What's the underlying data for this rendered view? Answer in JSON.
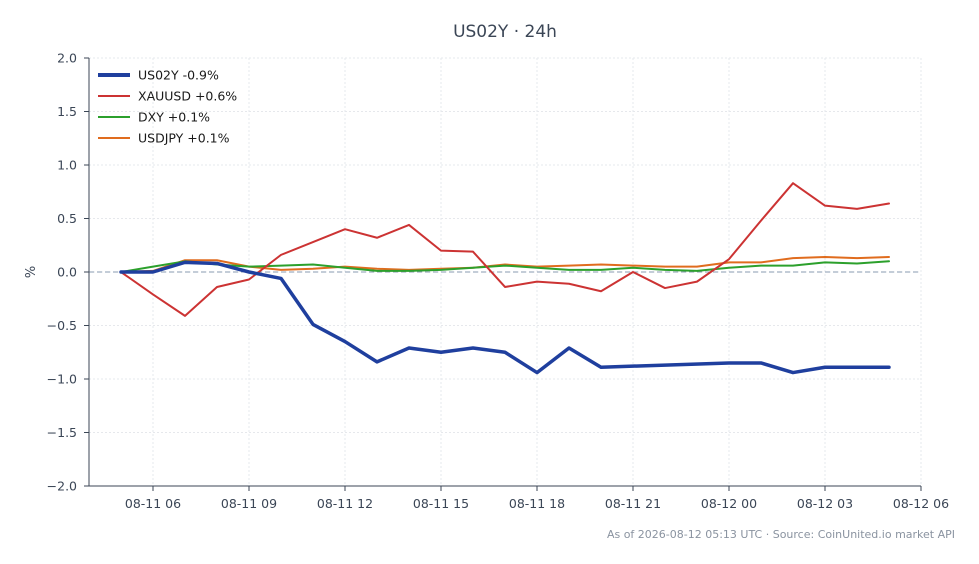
{
  "chart_data": {
    "type": "line",
    "title": "US02Y · 24h",
    "ylabel": "%",
    "xlabel": "",
    "ylim": [
      -2.0,
      2.0
    ],
    "yticks": [
      2.0,
      1.5,
      1.0,
      0.5,
      0.0,
      -0.5,
      -1.0,
      -1.5,
      -2.0
    ],
    "ytick_labels": [
      "2.0",
      "1.5",
      "1.0",
      "0.5",
      "0.0",
      "−0.5",
      "−1.0",
      "−1.5",
      "−2.0"
    ],
    "xlim": [
      "2026-08-11 04:00",
      "2026-08-12 06:00"
    ],
    "xticks": [
      "2026-08-11 06:00",
      "2026-08-11 09:00",
      "2026-08-11 12:00",
      "2026-08-11 15:00",
      "2026-08-11 18:00",
      "2026-08-11 21:00",
      "2026-08-12 00:00",
      "2026-08-12 03:00",
      "2026-08-12 06:00"
    ],
    "xtick_labels": [
      "08-11 06",
      "08-11 09",
      "08-11 12",
      "08-11 15",
      "08-11 18",
      "08-11 21",
      "08-12 00",
      "08-12 03",
      "08-12 06"
    ],
    "grid": true,
    "zero_line": true,
    "legend_position": "top-left",
    "series": [
      {
        "name": "US02Y -0.9%",
        "color": "#1f3f9e",
        "line_width": "thick",
        "points": [
          [
            "2026-08-11 05:00",
            0.0
          ],
          [
            "2026-08-11 06:00",
            0.0
          ],
          [
            "2026-08-11 07:00",
            0.09
          ],
          [
            "2026-08-11 08:00",
            0.08
          ],
          [
            "2026-08-11 09:00",
            0.0
          ],
          [
            "2026-08-11 10:00",
            -0.06
          ],
          [
            "2026-08-11 11:00",
            -0.49
          ],
          [
            "2026-08-11 12:00",
            -0.65
          ],
          [
            "2026-08-11 13:00",
            -0.84
          ],
          [
            "2026-08-11 14:00",
            -0.71
          ],
          [
            "2026-08-11 15:00",
            -0.75
          ],
          [
            "2026-08-11 16:00",
            -0.71
          ],
          [
            "2026-08-11 17:00",
            -0.75
          ],
          [
            "2026-08-11 18:00",
            -0.94
          ],
          [
            "2026-08-11 19:00",
            -0.71
          ],
          [
            "2026-08-11 20:00",
            -0.89
          ],
          [
            "2026-08-11 21:00",
            -0.88
          ],
          [
            "2026-08-12 00:00",
            -0.85
          ],
          [
            "2026-08-12 01:00",
            -0.85
          ],
          [
            "2026-08-12 02:00",
            -0.94
          ],
          [
            "2026-08-12 03:00",
            -0.89
          ],
          [
            "2026-08-12 04:00",
            -0.89
          ],
          [
            "2026-08-12 05:00",
            -0.89
          ]
        ]
      },
      {
        "name": "XAUUSD +0.6%",
        "color": "#cc3333",
        "line_width": "normal",
        "points": [
          [
            "2026-08-11 05:00",
            0.0
          ],
          [
            "2026-08-11 06:00",
            -0.21
          ],
          [
            "2026-08-11 07:00",
            -0.41
          ],
          [
            "2026-08-11 08:00",
            -0.14
          ],
          [
            "2026-08-11 09:00",
            -0.07
          ],
          [
            "2026-08-11 10:00",
            0.16
          ],
          [
            "2026-08-11 11:00",
            0.28
          ],
          [
            "2026-08-11 12:00",
            0.4
          ],
          [
            "2026-08-11 13:00",
            0.32
          ],
          [
            "2026-08-11 14:00",
            0.44
          ],
          [
            "2026-08-11 15:00",
            0.2
          ],
          [
            "2026-08-11 16:00",
            0.19
          ],
          [
            "2026-08-11 17:00",
            -0.14
          ],
          [
            "2026-08-11 18:00",
            -0.09
          ],
          [
            "2026-08-11 19:00",
            -0.11
          ],
          [
            "2026-08-11 20:00",
            -0.18
          ],
          [
            "2026-08-11 21:00",
            0.0
          ],
          [
            "2026-08-11 22:00",
            -0.15
          ],
          [
            "2026-08-11 23:00",
            -0.09
          ],
          [
            "2026-08-12 00:00",
            0.12
          ],
          [
            "2026-08-12 01:00",
            0.48
          ],
          [
            "2026-08-12 02:00",
            0.83
          ],
          [
            "2026-08-12 03:00",
            0.62
          ],
          [
            "2026-08-12 04:00",
            0.59
          ],
          [
            "2026-08-12 05:00",
            0.64
          ]
        ]
      },
      {
        "name": "DXY +0.1%",
        "color": "#2ca02c",
        "line_width": "normal",
        "points": [
          [
            "2026-08-11 05:00",
            0.0
          ],
          [
            "2026-08-11 06:00",
            0.05
          ],
          [
            "2026-08-11 07:00",
            0.1
          ],
          [
            "2026-08-11 08:00",
            0.07
          ],
          [
            "2026-08-11 09:00",
            0.05
          ],
          [
            "2026-08-11 10:00",
            0.06
          ],
          [
            "2026-08-11 11:00",
            0.07
          ],
          [
            "2026-08-11 12:00",
            0.04
          ],
          [
            "2026-08-11 13:00",
            0.01
          ],
          [
            "2026-08-11 14:00",
            0.01
          ],
          [
            "2026-08-11 15:00",
            0.02
          ],
          [
            "2026-08-11 16:00",
            0.04
          ],
          [
            "2026-08-11 17:00",
            0.06
          ],
          [
            "2026-08-11 18:00",
            0.04
          ],
          [
            "2026-08-11 19:00",
            0.02
          ],
          [
            "2026-08-11 20:00",
            0.02
          ],
          [
            "2026-08-11 21:00",
            0.04
          ],
          [
            "2026-08-11 22:00",
            0.02
          ],
          [
            "2026-08-11 23:00",
            0.01
          ],
          [
            "2026-08-12 00:00",
            0.04
          ],
          [
            "2026-08-12 01:00",
            0.06
          ],
          [
            "2026-08-12 02:00",
            0.06
          ],
          [
            "2026-08-12 03:00",
            0.09
          ],
          [
            "2026-08-12 04:00",
            0.08
          ],
          [
            "2026-08-12 05:00",
            0.1
          ]
        ]
      },
      {
        "name": "USDJPY +0.1%",
        "color": "#e06c1e",
        "line_width": "normal",
        "points": [
          [
            "2026-08-11 05:00",
            0.0
          ],
          [
            "2026-08-11 06:00",
            0.01
          ],
          [
            "2026-08-11 07:00",
            0.11
          ],
          [
            "2026-08-11 08:00",
            0.11
          ],
          [
            "2026-08-11 09:00",
            0.05
          ],
          [
            "2026-08-11 10:00",
            0.02
          ],
          [
            "2026-08-11 11:00",
            0.03
          ],
          [
            "2026-08-11 12:00",
            0.05
          ],
          [
            "2026-08-11 13:00",
            0.03
          ],
          [
            "2026-08-11 14:00",
            0.02
          ],
          [
            "2026-08-11 15:00",
            0.03
          ],
          [
            "2026-08-11 16:00",
            0.04
          ],
          [
            "2026-08-11 17:00",
            0.07
          ],
          [
            "2026-08-11 18:00",
            0.05
          ],
          [
            "2026-08-11 19:00",
            0.06
          ],
          [
            "2026-08-11 20:00",
            0.07
          ],
          [
            "2026-08-11 21:00",
            0.06
          ],
          [
            "2026-08-11 22:00",
            0.05
          ],
          [
            "2026-08-11 23:00",
            0.05
          ],
          [
            "2026-08-12 00:00",
            0.09
          ],
          [
            "2026-08-12 01:00",
            0.09
          ],
          [
            "2026-08-12 02:00",
            0.13
          ],
          [
            "2026-08-12 03:00",
            0.14
          ],
          [
            "2026-08-12 04:00",
            0.13
          ],
          [
            "2026-08-12 05:00",
            0.14
          ]
        ]
      }
    ]
  },
  "footer": "As of 2026-08-12 05:13 UTC · Source: CoinUnited.io market API",
  "colors": {
    "axis": "#3b4656",
    "grid": "#e6e8ec",
    "zero_line": "#8a9bb0",
    "footer": "#8a93a0"
  }
}
